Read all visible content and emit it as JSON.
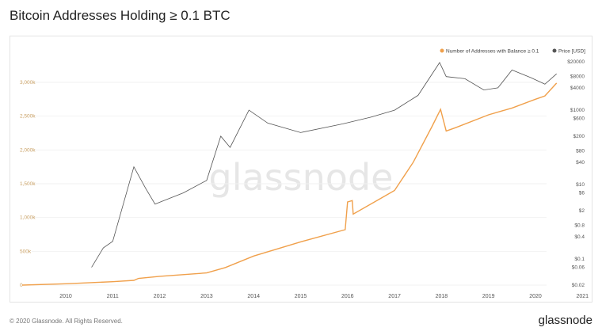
{
  "title": "Bitcoin Addresses Holding ≥ 0.1 BTC",
  "watermark": "glassnode",
  "footer": "© 2020 Glassnode. All Rights Reserved.",
  "logo": "glassnode",
  "chart_data": {
    "type": "line",
    "title": "Bitcoin Addresses Holding ≥ 0.1 BTC",
    "legend_position": "top-right",
    "x_ticks": [
      "2010",
      "2011",
      "2012",
      "2013",
      "2014",
      "2015",
      "2016",
      "2017",
      "2018",
      "2019",
      "2020",
      "2021"
    ],
    "left_axis": {
      "ticks": [
        "0",
        "500k",
        "1,000k",
        "1,500k",
        "2,000k",
        "2,500k",
        "3,000k"
      ],
      "range": [
        0,
        3000000
      ],
      "color": "#c9a064"
    },
    "right_axis": {
      "scale": "log",
      "ticks": [
        "$20000",
        "$8000",
        "$4000",
        "$1000",
        "$600",
        "$200",
        "$80",
        "$40",
        "$10",
        "$6",
        "$2",
        "$0.8",
        "$0.4",
        "$0.1",
        "$0.06",
        "$0.02"
      ],
      "range": [
        0.02,
        20000
      ]
    },
    "series": [
      {
        "name": "Number of Addresses with Balance ≥ 0.1",
        "color": "#f0a04b",
        "axis": "left",
        "x": [
          2009.07,
          2010.0,
          2011.0,
          2011.45,
          2011.55,
          2012.0,
          2013.0,
          2013.4,
          2014.0,
          2015.0,
          2015.95,
          2016.0,
          2016.1,
          2016.12,
          2017.0,
          2017.4,
          2017.8,
          2017.98,
          2018.1,
          2018.3,
          2019.0,
          2019.5,
          2020.0,
          2020.2,
          2020.45
        ],
        "y": [
          0,
          20000,
          50000,
          70000,
          100000,
          130000,
          180000,
          260000,
          430000,
          640000,
          820000,
          1230000,
          1250000,
          1050000,
          1400000,
          1820000,
          2350000,
          2600000,
          2280000,
          2330000,
          2520000,
          2620000,
          2750000,
          2800000,
          2990000
        ]
      },
      {
        "name": "Price [USD]",
        "color": "#555555",
        "axis": "right",
        "x": [
          2010.55,
          2010.8,
          2011.0,
          2011.45,
          2011.7,
          2011.9,
          2012.5,
          2013.0,
          2013.3,
          2013.5,
          2013.9,
          2014.3,
          2015.0,
          2015.9,
          2016.5,
          2017.0,
          2017.5,
          2017.96,
          2018.1,
          2018.5,
          2018.9,
          2019.2,
          2019.5,
          2019.9,
          2020.2,
          2020.45
        ],
        "y": [
          0.06,
          0.2,
          0.3,
          30,
          8,
          3,
          6,
          13,
          200,
          100,
          1000,
          450,
          250,
          430,
          650,
          1000,
          2500,
          19000,
          8000,
          7000,
          3500,
          4000,
          12000,
          7500,
          5000,
          9500
        ]
      }
    ]
  }
}
